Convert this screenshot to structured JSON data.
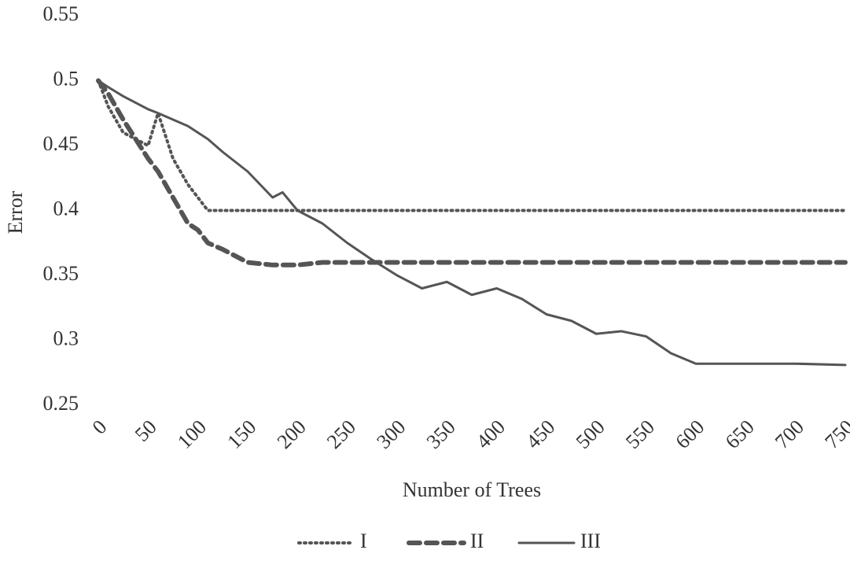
{
  "chart_data": {
    "type": "line",
    "xlabel": "Number of Trees",
    "ylabel": "Error",
    "x": [
      0,
      10,
      25,
      50,
      60,
      75,
      90,
      100,
      110,
      125,
      150,
      175,
      185,
      200,
      225,
      250,
      275,
      300,
      325,
      350,
      375,
      400,
      425,
      450,
      475,
      500,
      525,
      550,
      575,
      600,
      650,
      700,
      750
    ],
    "series": [
      {
        "name": "I",
        "color": "#555555",
        "style": "dotted",
        "values": [
          0.5,
          0.48,
          0.46,
          0.45,
          0.475,
          0.44,
          0.42,
          0.41,
          0.4,
          0.4,
          0.4,
          0.4,
          0.4,
          0.4,
          0.4,
          0.4,
          0.4,
          0.4,
          0.4,
          0.4,
          0.4,
          0.4,
          0.4,
          0.4,
          0.4,
          0.4,
          0.4,
          0.4,
          0.4,
          0.4,
          0.4,
          0.4,
          0.4
        ]
      },
      {
        "name": "II",
        "color": "#555555",
        "style": "dashed",
        "values": [
          0.5,
          0.49,
          0.47,
          0.44,
          0.43,
          0.41,
          0.39,
          0.385,
          0.375,
          0.37,
          0.36,
          0.358,
          0.358,
          0.358,
          0.36,
          0.36,
          0.36,
          0.36,
          0.36,
          0.36,
          0.36,
          0.36,
          0.36,
          0.36,
          0.36,
          0.36,
          0.36,
          0.36,
          0.36,
          0.36,
          0.36,
          0.36,
          0.36
        ]
      },
      {
        "name": "III",
        "color": "#555555",
        "style": "solid",
        "values": [
          0.5,
          0.495,
          0.488,
          0.478,
          0.475,
          0.47,
          0.465,
          0.46,
          0.455,
          0.445,
          0.43,
          0.41,
          0.414,
          0.4,
          0.39,
          0.375,
          0.362,
          0.35,
          0.34,
          0.345,
          0.335,
          0.34,
          0.332,
          0.32,
          0.315,
          0.305,
          0.307,
          0.303,
          0.29,
          0.282,
          0.282,
          0.282,
          0.281
        ]
      }
    ],
    "xlim": [
      0,
      750
    ],
    "xticks": [
      0,
      50,
      100,
      150,
      200,
      250,
      300,
      350,
      400,
      450,
      500,
      550,
      600,
      650,
      700,
      750
    ],
    "ylim": [
      0.25,
      0.55
    ],
    "yticks": [
      0.25,
      0.3,
      0.35,
      0.4,
      0.45,
      0.5,
      0.55
    ],
    "grid": false,
    "legend": "bottom"
  }
}
